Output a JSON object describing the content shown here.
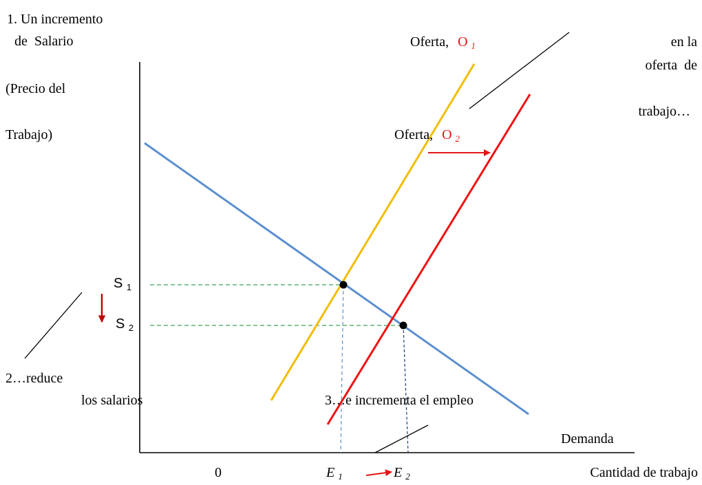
{
  "colors": {
    "background": "#ffffff",
    "axis": "#000000",
    "demand": "#5b8fcf",
    "supply1": "#f2bd00",
    "supply2": "#ee1111",
    "guide_green": "#3aa55a",
    "guide_blue": "#5b8fcf",
    "guide_navy": "#1f3a6e",
    "shift_arrow": "#e51616",
    "down_arrow": "#c00000",
    "point": "#000000",
    "text": "#000000",
    "subscript_red": "#e51616"
  },
  "annotations": {
    "step1_line1": "1. Un incremento",
    "step1_line2": "de  Salario",
    "ylabel_line1": "(Precio del",
    "ylabel_line2": "Trabajo)",
    "supply1_prefix": "Oferta,",
    "supply1_letter": "O",
    "supply1_sub": "1",
    "supply2_prefix": "Oferta,",
    "supply2_letter": "O",
    "supply2_sub": "2",
    "shift_line1": "en la",
    "shift_line2": "oferta  de",
    "shift_line3": "trabajo…",
    "s1_letter": "S",
    "s1_sub": "1",
    "s2_letter": "S",
    "s2_sub": "2",
    "step2_line1": "2…reduce",
    "step2_line2": "los salarios",
    "step3": "3…e incrementa el empleo",
    "demand": "Demanda",
    "origin": "0",
    "e1_letter": "E",
    "e1_sub": "1",
    "e2_letter": "E",
    "e2_sub": "2",
    "xlabel": "Cantidad de trabajo"
  }
}
